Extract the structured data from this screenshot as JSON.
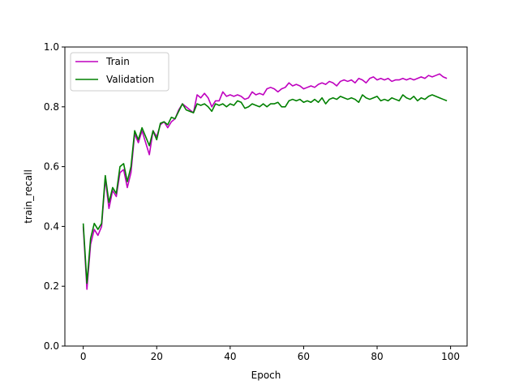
{
  "chart_data": {
    "type": "line",
    "xlabel": "Epoch",
    "ylabel": "train_recall",
    "xlim": [
      -5,
      104.5
    ],
    "ylim": [
      0.0,
      1.0
    ],
    "xticks": [
      0,
      20,
      40,
      60,
      80,
      100
    ],
    "yticks": [
      0.0,
      0.2,
      0.4,
      0.6,
      0.8,
      1.0
    ],
    "xtick_labels": [
      "0",
      "20",
      "40",
      "60",
      "80",
      "100"
    ],
    "ytick_labels": [
      "0.0",
      "0.2",
      "0.4",
      "0.6",
      "0.8",
      "1.0"
    ],
    "grid": false,
    "legend_position": "upper-left",
    "x": [
      0,
      1,
      2,
      3,
      4,
      5,
      6,
      7,
      8,
      9,
      10,
      11,
      12,
      13,
      14,
      15,
      16,
      17,
      18,
      19,
      20,
      21,
      22,
      23,
      24,
      25,
      26,
      27,
      28,
      29,
      30,
      31,
      32,
      33,
      34,
      35,
      36,
      37,
      38,
      39,
      40,
      41,
      42,
      43,
      44,
      45,
      46,
      47,
      48,
      49,
      50,
      51,
      52,
      53,
      54,
      55,
      56,
      57,
      58,
      59,
      60,
      61,
      62,
      63,
      64,
      65,
      66,
      67,
      68,
      69,
      70,
      71,
      72,
      73,
      74,
      75,
      76,
      77,
      78,
      79,
      80,
      81,
      82,
      83,
      84,
      85,
      86,
      87,
      88,
      89,
      90,
      91,
      92,
      93,
      94,
      95,
      96,
      97,
      98,
      99
    ],
    "series": [
      {
        "name": "Train",
        "color": "#bf00bf",
        "values": [
          0.4,
          0.19,
          0.34,
          0.39,
          0.37,
          0.4,
          0.56,
          0.46,
          0.52,
          0.5,
          0.58,
          0.59,
          0.53,
          0.58,
          0.71,
          0.68,
          0.72,
          0.68,
          0.64,
          0.72,
          0.7,
          0.74,
          0.75,
          0.73,
          0.75,
          0.76,
          0.79,
          0.81,
          0.8,
          0.79,
          0.78,
          0.84,
          0.83,
          0.845,
          0.83,
          0.8,
          0.82,
          0.82,
          0.85,
          0.835,
          0.84,
          0.835,
          0.84,
          0.835,
          0.825,
          0.83,
          0.85,
          0.84,
          0.845,
          0.84,
          0.86,
          0.865,
          0.86,
          0.85,
          0.86,
          0.865,
          0.88,
          0.87,
          0.875,
          0.87,
          0.86,
          0.865,
          0.87,
          0.865,
          0.875,
          0.88,
          0.875,
          0.885,
          0.88,
          0.87,
          0.885,
          0.89,
          0.885,
          0.89,
          0.88,
          0.895,
          0.89,
          0.88,
          0.895,
          0.9,
          0.89,
          0.895,
          0.89,
          0.895,
          0.885,
          0.89,
          0.89,
          0.895,
          0.89,
          0.895,
          0.89,
          0.895,
          0.9,
          0.895,
          0.905,
          0.9,
          0.905,
          0.91,
          0.9,
          0.895
        ]
      },
      {
        "name": "Validation",
        "color": "#008000",
        "values": [
          0.41,
          0.21,
          0.36,
          0.41,
          0.39,
          0.41,
          0.57,
          0.48,
          0.53,
          0.51,
          0.6,
          0.61,
          0.55,
          0.6,
          0.72,
          0.69,
          0.73,
          0.7,
          0.67,
          0.72,
          0.69,
          0.745,
          0.75,
          0.74,
          0.765,
          0.76,
          0.785,
          0.81,
          0.79,
          0.785,
          0.78,
          0.81,
          0.805,
          0.81,
          0.8,
          0.785,
          0.81,
          0.805,
          0.81,
          0.8,
          0.81,
          0.805,
          0.82,
          0.815,
          0.795,
          0.8,
          0.81,
          0.805,
          0.8,
          0.81,
          0.8,
          0.81,
          0.81,
          0.815,
          0.8,
          0.8,
          0.82,
          0.825,
          0.82,
          0.825,
          0.815,
          0.82,
          0.815,
          0.825,
          0.815,
          0.83,
          0.81,
          0.825,
          0.83,
          0.825,
          0.835,
          0.83,
          0.825,
          0.83,
          0.825,
          0.815,
          0.84,
          0.83,
          0.825,
          0.83,
          0.835,
          0.82,
          0.825,
          0.82,
          0.83,
          0.825,
          0.82,
          0.84,
          0.83,
          0.825,
          0.835,
          0.82,
          0.83,
          0.825,
          0.835,
          0.84,
          0.835,
          0.83,
          0.825,
          0.82
        ]
      }
    ]
  }
}
